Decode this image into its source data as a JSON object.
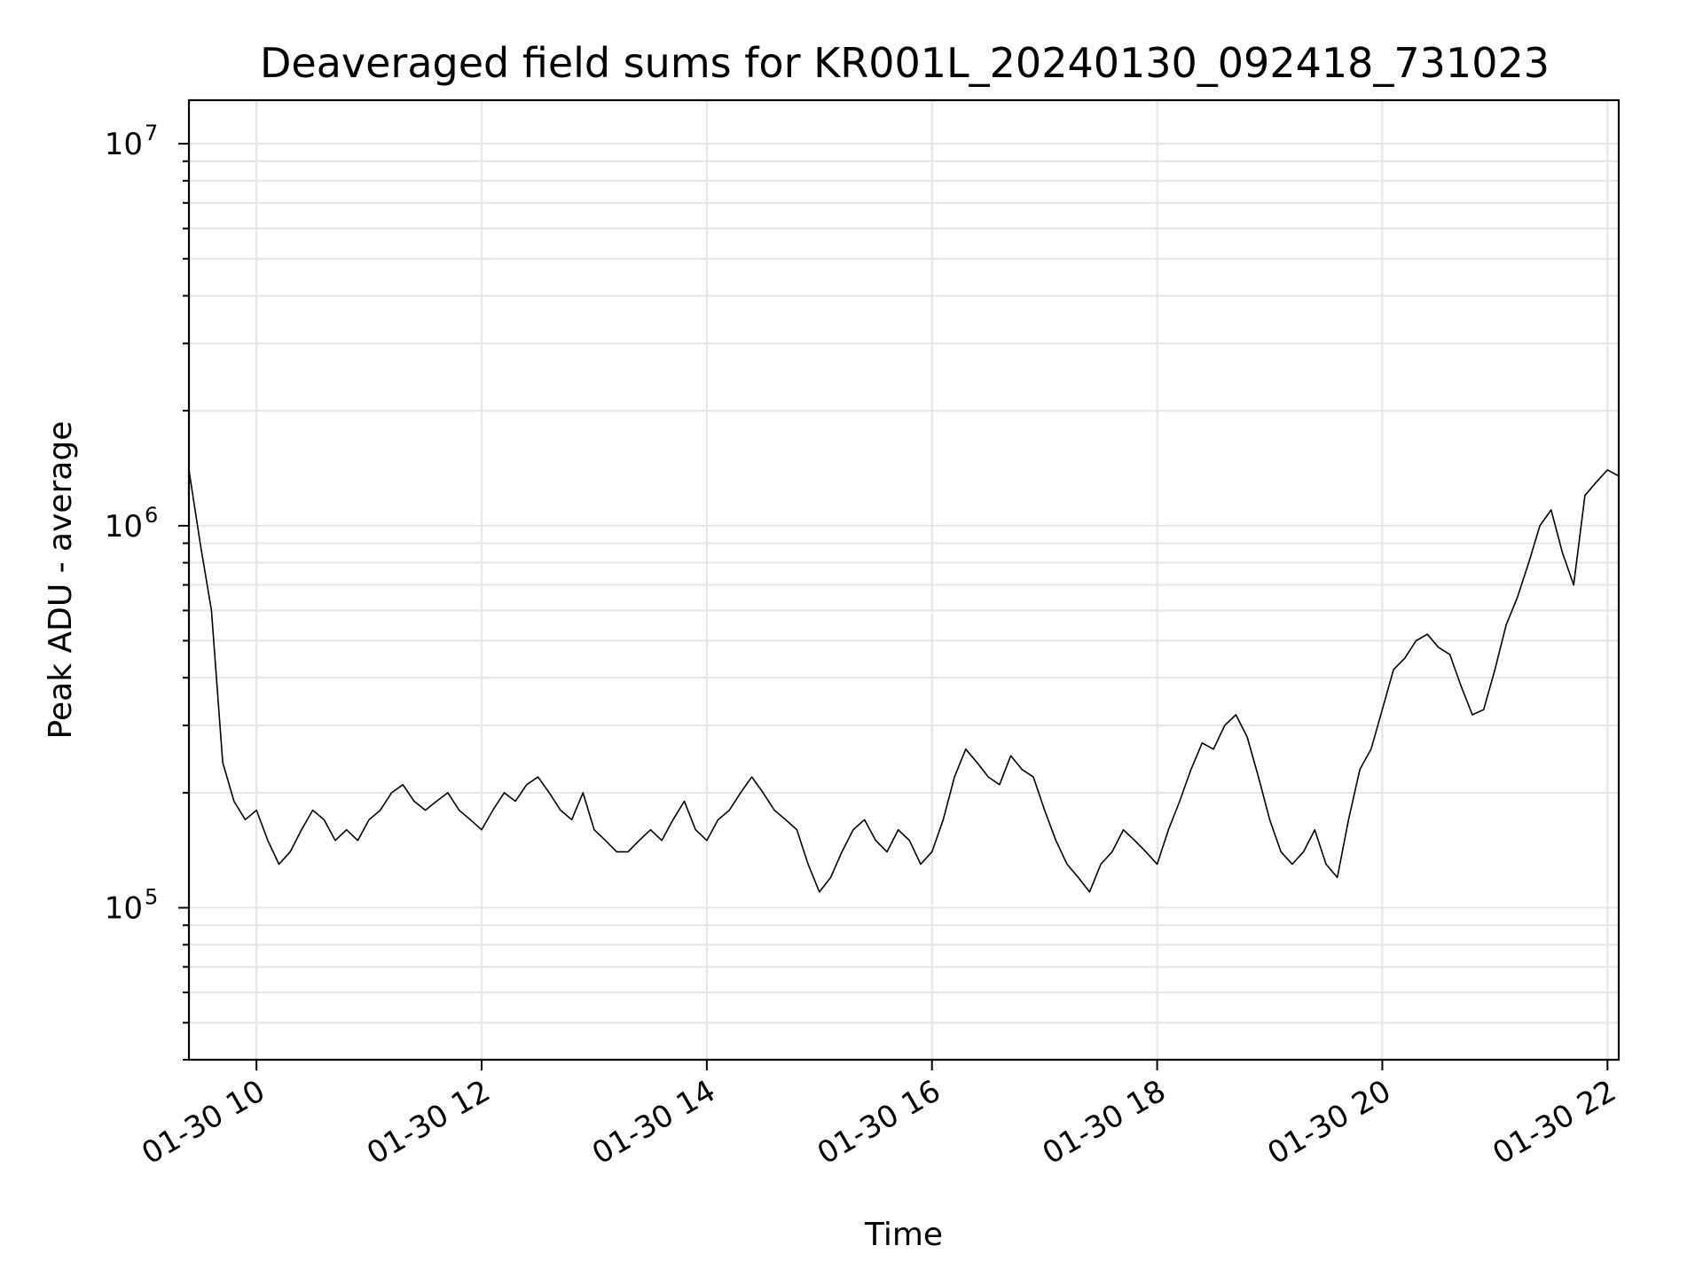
{
  "chart_data": {
    "type": "line",
    "title": "Deaveraged field sums for KR001L_20240130_092418_731023",
    "xlabel": "Time",
    "ylabel": "Peak ADU - average",
    "x_range": [
      "2024-01-30 09:24",
      "2024-01-30 22:06"
    ],
    "ylim": [
      40000,
      13000000
    ],
    "y_scale": "log",
    "grid": true,
    "line_color": "#000000",
    "background_color": "#ffffff",
    "grid_color": "#e6e6e6",
    "x_ticks": [
      {
        "value": "2024-01-30 10:00",
        "label": "01-30 10"
      },
      {
        "value": "2024-01-30 12:00",
        "label": "01-30 12"
      },
      {
        "value": "2024-01-30 14:00",
        "label": "01-30 14"
      },
      {
        "value": "2024-01-30 16:00",
        "label": "01-30 16"
      },
      {
        "value": "2024-01-30 18:00",
        "label": "01-30 18"
      },
      {
        "value": "2024-01-30 20:00",
        "label": "01-30 20"
      },
      {
        "value": "2024-01-30 22:00",
        "label": "01-30 22"
      }
    ],
    "y_ticks": [
      {
        "value": 100000,
        "base": "10",
        "exp": "5"
      },
      {
        "value": 1000000,
        "base": "10",
        "exp": "6"
      },
      {
        "value": 10000000,
        "base": "10",
        "exp": "7"
      }
    ],
    "series": [
      {
        "x": [
          "2024-01-30 09:24",
          "2024-01-30 09:30",
          "2024-01-30 09:36",
          "2024-01-30 09:42",
          "2024-01-30 09:48",
          "2024-01-30 09:54",
          "2024-01-30 10:00",
          "2024-01-30 10:06",
          "2024-01-30 10:12",
          "2024-01-30 10:18",
          "2024-01-30 10:24",
          "2024-01-30 10:30",
          "2024-01-30 10:36",
          "2024-01-30 10:42",
          "2024-01-30 10:48",
          "2024-01-30 10:54",
          "2024-01-30 11:00",
          "2024-01-30 11:06",
          "2024-01-30 11:12",
          "2024-01-30 11:18",
          "2024-01-30 11:24",
          "2024-01-30 11:30",
          "2024-01-30 11:36",
          "2024-01-30 11:42",
          "2024-01-30 11:48",
          "2024-01-30 11:54",
          "2024-01-30 12:00",
          "2024-01-30 12:06",
          "2024-01-30 12:12",
          "2024-01-30 12:18",
          "2024-01-30 12:24",
          "2024-01-30 12:30",
          "2024-01-30 12:36",
          "2024-01-30 12:42",
          "2024-01-30 12:48",
          "2024-01-30 12:54",
          "2024-01-30 13:00",
          "2024-01-30 13:06",
          "2024-01-30 13:12",
          "2024-01-30 13:18",
          "2024-01-30 13:24",
          "2024-01-30 13:30",
          "2024-01-30 13:36",
          "2024-01-30 13:42",
          "2024-01-30 13:48",
          "2024-01-30 13:54",
          "2024-01-30 14:00",
          "2024-01-30 14:06",
          "2024-01-30 14:12",
          "2024-01-30 14:18",
          "2024-01-30 14:24",
          "2024-01-30 14:30",
          "2024-01-30 14:36",
          "2024-01-30 14:42",
          "2024-01-30 14:48",
          "2024-01-30 14:54",
          "2024-01-30 15:00",
          "2024-01-30 15:06",
          "2024-01-30 15:12",
          "2024-01-30 15:18",
          "2024-01-30 15:24",
          "2024-01-30 15:30",
          "2024-01-30 15:36",
          "2024-01-30 15:42",
          "2024-01-30 15:48",
          "2024-01-30 15:54",
          "2024-01-30 16:00",
          "2024-01-30 16:06",
          "2024-01-30 16:12",
          "2024-01-30 16:18",
          "2024-01-30 16:24",
          "2024-01-30 16:30",
          "2024-01-30 16:36",
          "2024-01-30 16:42",
          "2024-01-30 16:48",
          "2024-01-30 16:54",
          "2024-01-30 17:00",
          "2024-01-30 17:06",
          "2024-01-30 17:12",
          "2024-01-30 17:18",
          "2024-01-30 17:24",
          "2024-01-30 17:30",
          "2024-01-30 17:36",
          "2024-01-30 17:42",
          "2024-01-30 17:48",
          "2024-01-30 17:54",
          "2024-01-30 18:00",
          "2024-01-30 18:06",
          "2024-01-30 18:12",
          "2024-01-30 18:18",
          "2024-01-30 18:24",
          "2024-01-30 18:30",
          "2024-01-30 18:36",
          "2024-01-30 18:42",
          "2024-01-30 18:48",
          "2024-01-30 18:54",
          "2024-01-30 19:00",
          "2024-01-30 19:06",
          "2024-01-30 19:12",
          "2024-01-30 19:18",
          "2024-01-30 19:24",
          "2024-01-30 19:30",
          "2024-01-30 19:36",
          "2024-01-30 19:42",
          "2024-01-30 19:48",
          "2024-01-30 19:54",
          "2024-01-30 20:00",
          "2024-01-30 20:06",
          "2024-01-30 20:12",
          "2024-01-30 20:18",
          "2024-01-30 20:24",
          "2024-01-30 20:30",
          "2024-01-30 20:36",
          "2024-01-30 20:42",
          "2024-01-30 20:48",
          "2024-01-30 20:54",
          "2024-01-30 21:00",
          "2024-01-30 21:06",
          "2024-01-30 21:12",
          "2024-01-30 21:18",
          "2024-01-30 21:24",
          "2024-01-30 21:30",
          "2024-01-30 21:36",
          "2024-01-30 21:42",
          "2024-01-30 21:48",
          "2024-01-30 21:54",
          "2024-01-30 22:00",
          "2024-01-30 22:06"
        ],
        "y": [
          1400000,
          900000,
          600000,
          240000,
          190000,
          170000,
          180000,
          150000,
          130000,
          140000,
          160000,
          180000,
          170000,
          150000,
          160000,
          150000,
          170000,
          180000,
          200000,
          210000,
          190000,
          180000,
          190000,
          200000,
          180000,
          170000,
          160000,
          180000,
          200000,
          190000,
          210000,
          220000,
          200000,
          180000,
          170000,
          200000,
          160000,
          150000,
          140000,
          140000,
          150000,
          160000,
          150000,
          170000,
          190000,
          160000,
          150000,
          170000,
          180000,
          200000,
          220000,
          200000,
          180000,
          170000,
          160000,
          130000,
          110000,
          120000,
          140000,
          160000,
          170000,
          150000,
          140000,
          160000,
          150000,
          130000,
          140000,
          170000,
          220000,
          260000,
          240000,
          220000,
          210000,
          250000,
          230000,
          220000,
          180000,
          150000,
          130000,
          120000,
          110000,
          130000,
          140000,
          160000,
          150000,
          140000,
          130000,
          160000,
          190000,
          230000,
          270000,
          260000,
          300000,
          320000,
          280000,
          220000,
          170000,
          140000,
          130000,
          140000,
          160000,
          130000,
          120000,
          170000,
          230000,
          260000,
          330000,
          420000,
          450000,
          500000,
          520000,
          480000,
          460000,
          380000,
          320000,
          330000,
          420000,
          550000,
          650000,
          800000,
          1000000,
          1100000,
          850000,
          700000,
          1200000,
          1300000,
          1400000,
          1350000
        ]
      }
    ]
  }
}
